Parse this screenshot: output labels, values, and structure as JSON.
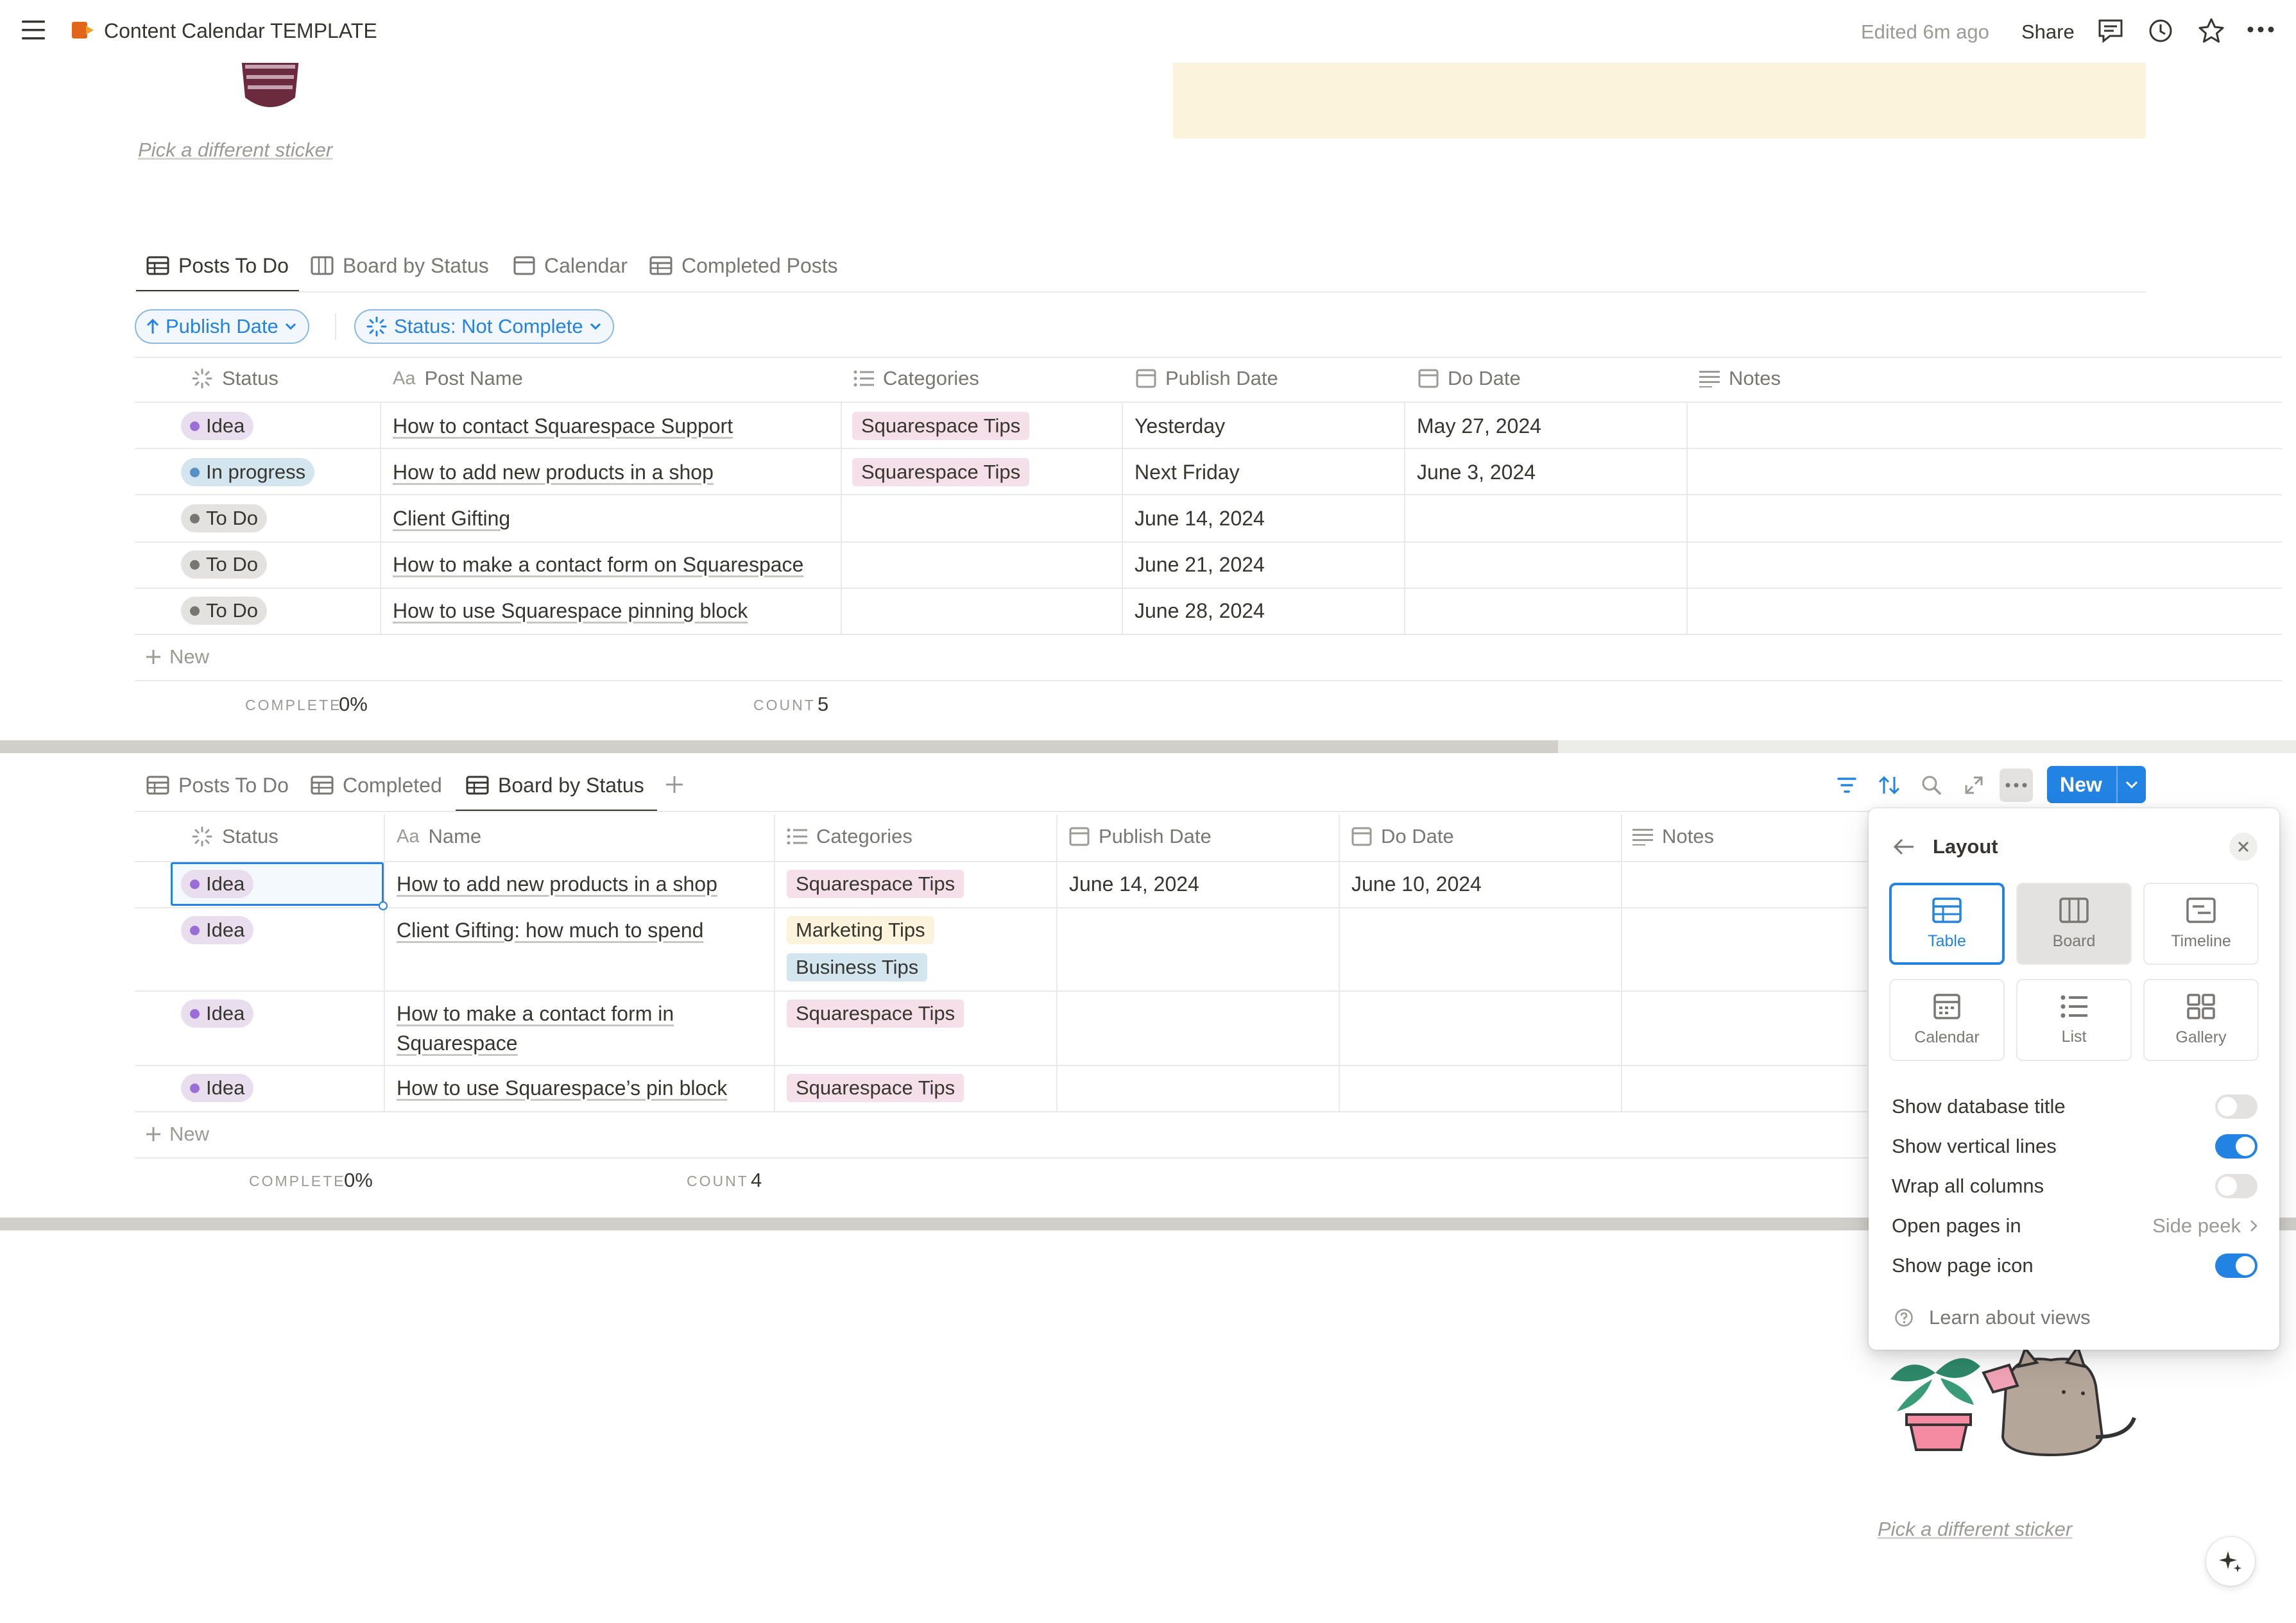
{
  "topbar": {
    "title": "Content Calendar TEMPLATE",
    "edited": "Edited 6m ago",
    "share": "Share"
  },
  "sticker": {
    "link_top": "Pick a different sticker",
    "link_bottom": "Pick a different sticker"
  },
  "view1": {
    "tabs": [
      "Posts To Do",
      "Board by Status",
      "Calendar",
      "Completed Posts"
    ],
    "filters": {
      "sort": "Publish Date",
      "status": "Status: Not Complete"
    },
    "headers": [
      "Status",
      "Post Name",
      "Categories",
      "Publish Date",
      "Do Date",
      "Notes"
    ],
    "rows": [
      {
        "status": "Idea",
        "name": "How to contact Squarespace Support",
        "category": "Squarespace Tips",
        "publish": "Yesterday",
        "do": "May 27, 2024"
      },
      {
        "status": "In progress",
        "name": "How to add new products in a shop",
        "category": "Squarespace Tips",
        "publish": "Next Friday",
        "do": "June 3, 2024"
      },
      {
        "status": "To Do",
        "name": "Client Gifting",
        "category": "",
        "publish": "June 14, 2024",
        "do": ""
      },
      {
        "status": "To Do",
        "name": "How to make a contact form on Squarespace",
        "category": "",
        "publish": "June 21, 2024",
        "do": ""
      },
      {
        "status": "To Do",
        "name": "How to use Squarespace pinning block",
        "category": "",
        "publish": "June 28, 2024",
        "do": ""
      }
    ],
    "new_label": "New",
    "calc": {
      "complete_label": "COMPLETE",
      "complete_value": "0%",
      "count_label": "COUNT",
      "count_value": "5"
    }
  },
  "view2": {
    "tabs": [
      "Posts To Do",
      "Completed",
      "Board by Status"
    ],
    "new_button": "New",
    "headers": [
      "Status",
      "Name",
      "Categories",
      "Publish Date",
      "Do Date",
      "Notes"
    ],
    "rows": [
      {
        "status": "Idea",
        "name": "How to add new products in a shop",
        "categories": [
          "Squarespace Tips"
        ],
        "publish": "June 14, 2024",
        "do": "June 10, 2024"
      },
      {
        "status": "Idea",
        "name": "Client Gifting: how much to spend",
        "categories": [
          "Marketing Tips",
          "Business Tips"
        ],
        "publish": "",
        "do": ""
      },
      {
        "status": "Idea",
        "name_line1": "How to make a contact form in",
        "name_line2": "Squarespace",
        "categories": [
          "Squarespace Tips"
        ],
        "publish": "",
        "do": ""
      },
      {
        "status": "Idea",
        "name": "How to use Squarespace’s pin block",
        "categories": [
          "Squarespace Tips"
        ],
        "publish": "",
        "do": ""
      }
    ],
    "new_label": "New",
    "calc": {
      "complete_label": "COMPLETE",
      "complete_value": "0%",
      "count_label": "COUNT",
      "count_value": "4"
    }
  },
  "layout_popup": {
    "title": "Layout",
    "options": [
      "Table",
      "Board",
      "Timeline",
      "Calendar",
      "List",
      "Gallery"
    ],
    "selected": "Table",
    "settings": {
      "show_db_title": {
        "label": "Show database title",
        "on": false
      },
      "vertical_lines": {
        "label": "Show vertical lines",
        "on": true
      },
      "wrap_columns": {
        "label": "Wrap all columns",
        "on": false
      },
      "open_pages": {
        "label": "Open pages in",
        "value": "Side peek"
      },
      "page_icon": {
        "label": "Show page icon",
        "on": true
      }
    },
    "learn": "Learn about views"
  },
  "colors": {
    "accent": "#2383e2",
    "banner": "#fbf3dc",
    "tag_pink": "#f5e0e9",
    "tag_yellow": "#fbf3db",
    "tag_blue": "#d3e5ef"
  }
}
